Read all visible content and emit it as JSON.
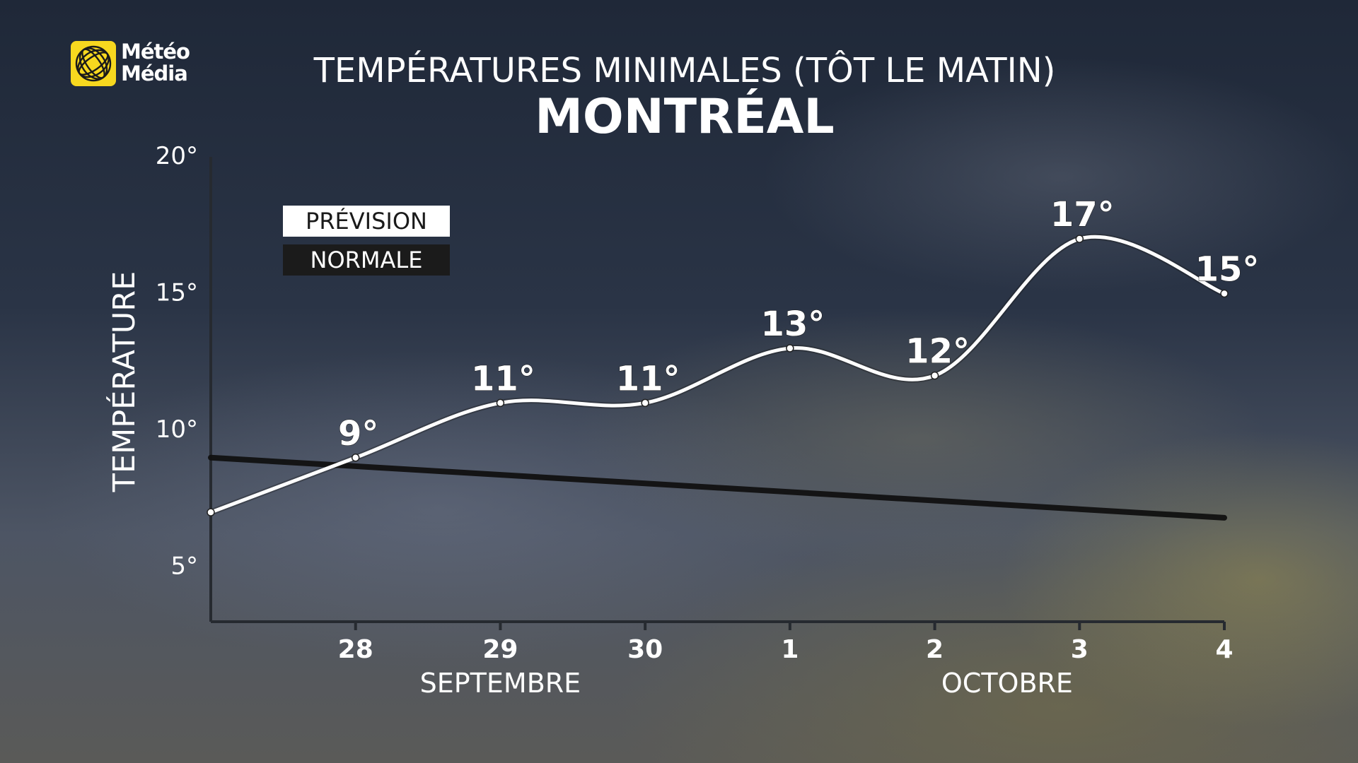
{
  "brand": {
    "line1": "Météo",
    "line2": "Média",
    "icon": "globe-icon",
    "color": "#f7d81f"
  },
  "header": {
    "subtitle": "TEMPÉRATURES MINIMALES (TÔT LE MATIN)",
    "title": "MONTRÉAL"
  },
  "legend": {
    "forecast_label": "PRÉVISION",
    "normal_label": "NORMALE"
  },
  "chart_data": {
    "type": "line",
    "ylabel": "TEMPÉRATURE",
    "ylim": [
      3,
      20
    ],
    "y_ticks": [
      5,
      10,
      15,
      20
    ],
    "y_tick_labels": [
      "5°",
      "10°",
      "15°",
      "20°"
    ],
    "x_ticks": [
      28,
      29,
      30,
      1,
      2,
      3,
      4
    ],
    "x_tick_labels": [
      "28",
      "29",
      "30",
      "1",
      "2",
      "3",
      "4"
    ],
    "x_group_labels": [
      {
        "label": "SEPTEMBRE",
        "center": 29
      },
      {
        "label": "OCTOBRE",
        "center": 2.5
      }
    ],
    "x_start": 27,
    "series": [
      {
        "name": "PRÉVISION",
        "color": "#ffffff",
        "x": [
          27,
          28,
          29,
          30,
          31,
          32,
          33,
          34
        ],
        "values": [
          7,
          9,
          11,
          11,
          13,
          12,
          17,
          15
        ],
        "labels": [
          "",
          "9°",
          "11°",
          "11°",
          "13°",
          "12°",
          "17°",
          "15°"
        ]
      },
      {
        "name": "NORMALE",
        "color": "#111111",
        "x": [
          27,
          34
        ],
        "values": [
          9,
          6.8
        ]
      }
    ]
  }
}
